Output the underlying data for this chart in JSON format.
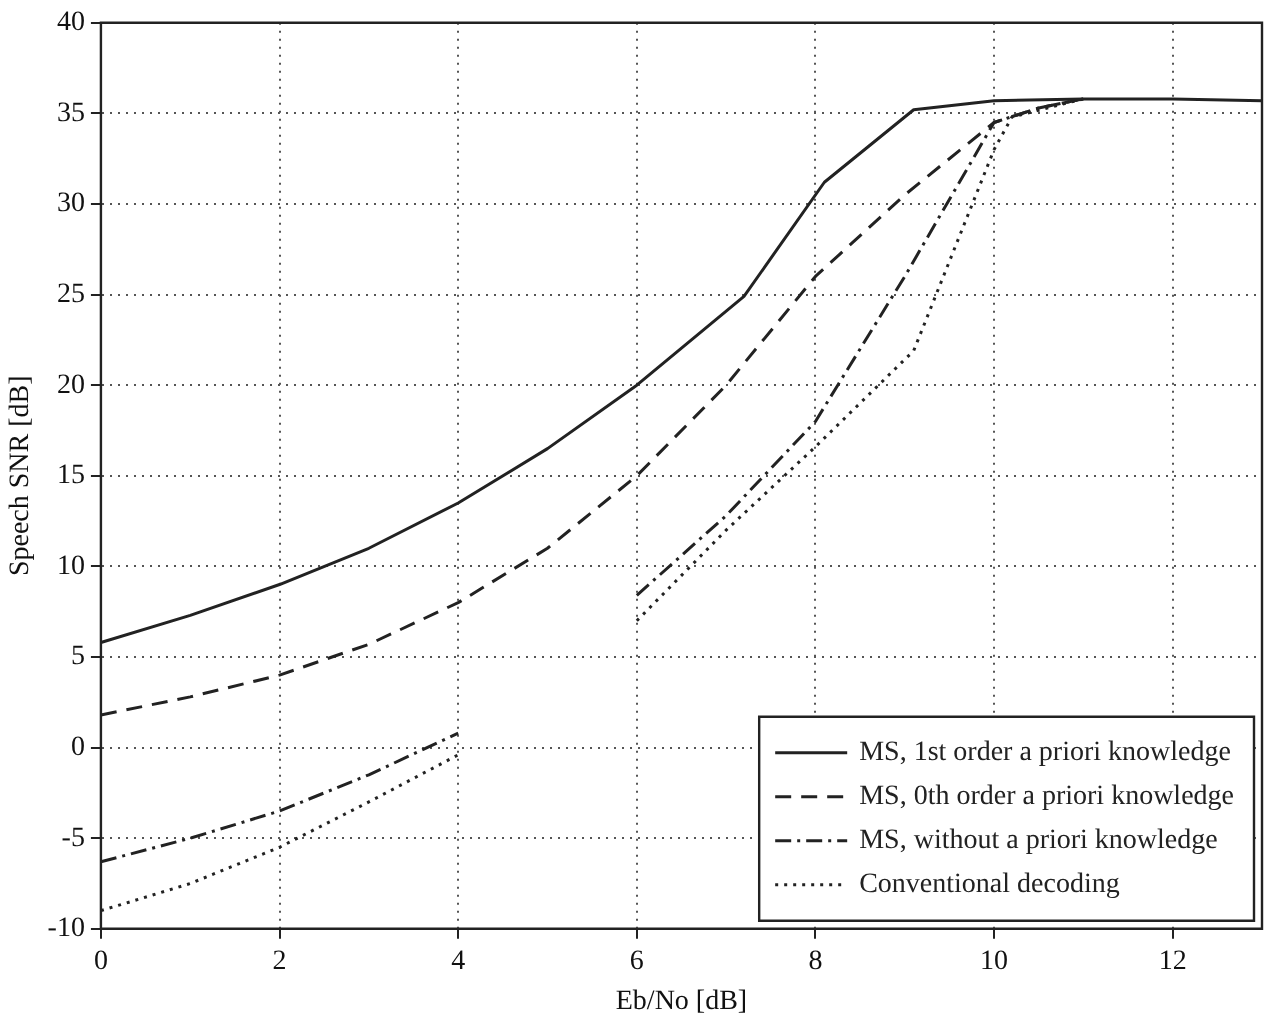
{
  "chart_data": {
    "type": "line",
    "xlabel": "Eb/No [dB]",
    "ylabel": "Speech SNR [dB]",
    "xlim": [
      0,
      13
    ],
    "xticks": [
      0,
      2,
      4,
      6,
      8,
      10,
      12
    ],
    "ylim": [
      -10,
      40
    ],
    "yticks": [
      -10,
      -5,
      0,
      5,
      10,
      15,
      20,
      25,
      30,
      35,
      40
    ],
    "grid": true,
    "legend": "bottom right",
    "marker": "none",
    "series": [
      {
        "name": "MS, 1st order a priori knowledge",
        "color": "#222222",
        "line_style": "solid",
        "x": [
          0,
          1,
          2,
          3,
          4,
          5,
          6,
          7.2,
          8.1,
          9.1,
          10,
          11,
          12,
          13
        ],
        "values": [
          5.8,
          7.3,
          9,
          11,
          13.5,
          16.5,
          20,
          24.9,
          31.2,
          35.2,
          35.7,
          35.8,
          35.8,
          35.7
        ]
      },
      {
        "name": "MS, 0th order a priori knowledge",
        "color": "#222222",
        "line_style": "dashed",
        "x": [
          0,
          1,
          2,
          3,
          4,
          5,
          6,
          7,
          8,
          9,
          10,
          10.5,
          11
        ],
        "values": [
          1.8,
          2.8,
          4,
          5.7,
          8,
          11,
          15,
          20,
          26,
          30.5,
          34.5,
          35.3,
          35.8
        ]
      },
      {
        "name": "MS, without a priori knowledge",
        "color": "#222222",
        "line_style": "dashdot",
        "x": [
          0,
          1,
          2,
          3,
          4,
          5,
          6,
          7,
          8,
          9,
          10,
          10.5,
          11
        ],
        "values": [
          -6.3,
          -5,
          -3.5,
          -1.5,
          0.8,
          null,
          8.4,
          12.8,
          18,
          26,
          34.5,
          35.3,
          35.8
        ]
      },
      {
        "name": "Conventional decoding",
        "color": "#222222",
        "line_style": "dotted",
        "x": [
          0,
          1,
          2,
          3,
          4,
          5,
          6,
          7,
          8,
          9.1,
          10,
          10.2,
          11
        ],
        "values": [
          -9,
          -7.5,
          -5.5,
          -3,
          -0.4,
          null,
          7,
          12,
          16.6,
          21.9,
          33,
          34.8,
          35.8
        ]
      }
    ]
  }
}
